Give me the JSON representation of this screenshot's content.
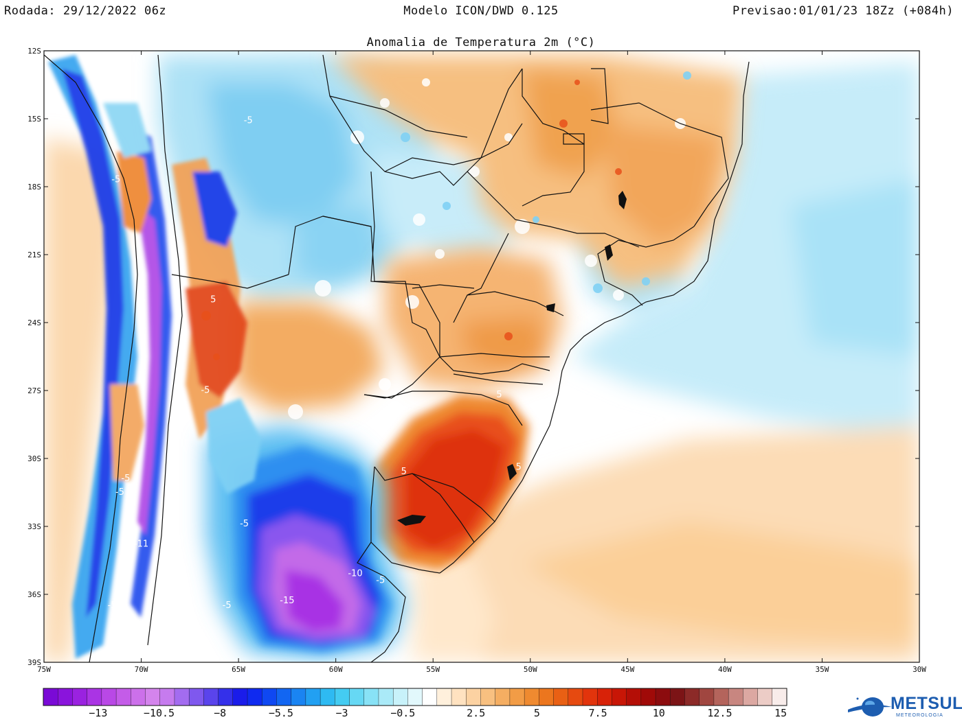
{
  "header": {
    "run": "Rodada: 29/12/2022 06z",
    "model": "Modelo ICON/DWD 0.125",
    "forecast": "Previsao:01/01/23 18Zz (+084h)",
    "subtitle": "Anomalia de Temperatura 2m (°C)"
  },
  "map": {
    "lon_labels": [
      "75W",
      "70W",
      "65W",
      "60W",
      "55W",
      "50W",
      "45W",
      "40W",
      "35W",
      "30W"
    ],
    "lat_labels": [
      "12S",
      "15S",
      "18S",
      "21S",
      "24S",
      "27S",
      "30S",
      "33S",
      "36S",
      "39S"
    ],
    "contour_labels": [
      {
        "text": "-5",
        "lon": -64.5,
        "lat": -15.2
      },
      {
        "text": "-5",
        "lon": -71.3,
        "lat": -17.8
      },
      {
        "text": "-5",
        "lon": -70.8,
        "lat": -31.0
      },
      {
        "text": "-5",
        "lon": -71.1,
        "lat": -31.6
      },
      {
        "text": "-5",
        "lon": -71.5,
        "lat": -36.6
      },
      {
        "text": "-5",
        "lon": -64.7,
        "lat": -33.0
      },
      {
        "text": "-5",
        "lon": -65.6,
        "lat": -36.6
      },
      {
        "text": "-5",
        "lon": -57.7,
        "lat": -35.5
      },
      {
        "text": "-10",
        "lon": -59.0,
        "lat": -35.2
      },
      {
        "text": "-15",
        "lon": -62.5,
        "lat": -36.4
      },
      {
        "text": "-11",
        "lon": -70.0,
        "lat": -33.9
      },
      {
        "text": "5",
        "lon": -66.3,
        "lat": -23.1
      },
      {
        "text": "-5",
        "lon": -66.7,
        "lat": -27.1
      },
      {
        "text": "5",
        "lon": -51.6,
        "lat": -27.3
      },
      {
        "text": "5",
        "lon": -56.5,
        "lat": -30.7
      },
      {
        "text": "5",
        "lon": -50.6,
        "lat": -30.5
      }
    ]
  },
  "colorbar": {
    "tick_labels": [
      "−13",
      "−10.5",
      "−8",
      "−5.5",
      "−3",
      "−0.5",
      "2.5",
      "5",
      "7.5",
      "10",
      "12.5",
      "15"
    ],
    "colors": [
      "#7a0ad6",
      "#8a14dc",
      "#9a22e0",
      "#aa34e4",
      "#b948e6",
      "#c45ce8",
      "#cc70ea",
      "#d484ec",
      "#c67bee",
      "#a36cf0",
      "#7f58ee",
      "#5a44ec",
      "#3430ea",
      "#1a1cea",
      "#0f2af0",
      "#0f48f2",
      "#1266f2",
      "#1a84f2",
      "#22a0f2",
      "#2ebaf2",
      "#44ccf2",
      "#66d8f4",
      "#88e2f6",
      "#aaeaf8",
      "#c8f2fa",
      "#e2f8fc",
      "#ffffff",
      "#fff0dc",
      "#ffe2c0",
      "#fcd2a2",
      "#f8c080",
      "#f5ae62",
      "#f29c46",
      "#ef8a30",
      "#ec761e",
      "#e96014",
      "#e64a10",
      "#e2340c",
      "#d82208",
      "#c81606",
      "#b40e06",
      "#a00a08",
      "#8c0c0e",
      "#7c1416",
      "#8c2a28",
      "#a04640",
      "#b4645c",
      "#c88680",
      "#dca8a2",
      "#ecccc6",
      "#f8ecea"
    ]
  },
  "legend_colors": {
    "cold_extreme": "#8e2fe0",
    "cold_strong": "#2a2ae6",
    "cold": "#33b8f0",
    "cold_light": "#bfe8f8",
    "neutral": "#ffffff",
    "warm_light": "#fbe1c2",
    "warm": "#f3a85a",
    "warm_strong": "#e8401a",
    "warm_extreme": "#c8180c"
  },
  "logo": {
    "name": "METSUL",
    "tagline": "METEOROLOGIA",
    "icon": "globe-icon"
  }
}
